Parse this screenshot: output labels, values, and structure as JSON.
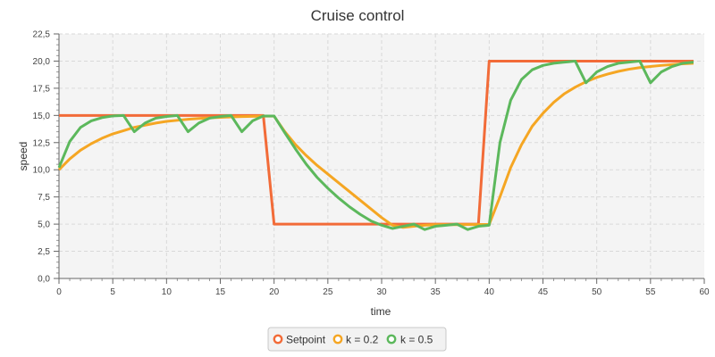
{
  "chart_data": {
    "type": "line",
    "title": "Cruise control",
    "xlabel": "time",
    "ylabel": "speed",
    "xlim": [
      0,
      60
    ],
    "ylim": [
      0,
      22.5
    ],
    "x_ticks": [
      "0",
      "5",
      "10",
      "15",
      "20",
      "25",
      "30",
      "35",
      "40",
      "45",
      "50",
      "55",
      "60"
    ],
    "y_ticks": [
      "0,0",
      "2,5",
      "5,0",
      "7,5",
      "10,0",
      "12,5",
      "15,0",
      "17,5",
      "20,0",
      "22,5"
    ],
    "grid": true,
    "legend_position": "bottom",
    "x": [
      0,
      1,
      2,
      3,
      4,
      5,
      6,
      7,
      8,
      9,
      10,
      11,
      12,
      13,
      14,
      15,
      16,
      17,
      18,
      19,
      20,
      21,
      22,
      23,
      24,
      25,
      26,
      27,
      28,
      29,
      30,
      31,
      32,
      33,
      34,
      35,
      36,
      37,
      38,
      39,
      40,
      41,
      42,
      43,
      44,
      45,
      46,
      47,
      48,
      49,
      50,
      51,
      52,
      53,
      54,
      55,
      56,
      57,
      58,
      59
    ],
    "series": [
      {
        "name": "Setpoint",
        "color": "#f26b38",
        "values": [
          15,
          15,
          15,
          15,
          15,
          15,
          15,
          15,
          15,
          15,
          15,
          15,
          15,
          15,
          15,
          15,
          15,
          15,
          15,
          15,
          5,
          5,
          5,
          5,
          5,
          5,
          5,
          5,
          5,
          5,
          5,
          5,
          5,
          5,
          5,
          5,
          5,
          5,
          5,
          5,
          20,
          20,
          20,
          20,
          20,
          20,
          20,
          20,
          20,
          20,
          20,
          20,
          20,
          20,
          20,
          20,
          20,
          20,
          20,
          20
        ]
      },
      {
        "name": "k = 0.2",
        "color": "#f5a623",
        "values": [
          10.0,
          11.0,
          11.8,
          12.4,
          12.9,
          13.3,
          13.6,
          13.9,
          14.1,
          14.3,
          14.45,
          14.55,
          14.65,
          14.72,
          14.78,
          14.82,
          14.86,
          14.89,
          14.91,
          14.93,
          14.93,
          13.5,
          12.3,
          11.3,
          10.4,
          9.6,
          8.8,
          8.0,
          7.2,
          6.4,
          5.6,
          4.9,
          4.7,
          4.8,
          4.9,
          4.95,
          4.95,
          4.95,
          4.96,
          4.97,
          4.97,
          7.5,
          10.2,
          12.3,
          14.0,
          15.2,
          16.2,
          17.0,
          17.6,
          18.1,
          18.5,
          18.8,
          19.05,
          19.25,
          19.4,
          19.5,
          19.6,
          19.68,
          19.75,
          19.8
        ]
      },
      {
        "name": "k = 0.5",
        "color": "#5cb85c",
        "values": [
          10.2,
          12.6,
          13.9,
          14.5,
          14.8,
          14.95,
          15.0,
          13.5,
          14.3,
          14.75,
          14.9,
          15.0,
          13.5,
          14.3,
          14.75,
          14.9,
          15.0,
          13.5,
          14.5,
          14.95,
          14.95,
          13.4,
          11.9,
          10.5,
          9.3,
          8.3,
          7.4,
          6.6,
          5.9,
          5.3,
          4.9,
          4.6,
          4.8,
          5.0,
          4.5,
          4.8,
          4.9,
          5.0,
          4.5,
          4.8,
          4.9,
          12.5,
          16.4,
          18.3,
          19.2,
          19.6,
          19.8,
          19.9,
          20.0,
          18.0,
          19.0,
          19.5,
          19.8,
          19.9,
          20.0,
          18.0,
          19.0,
          19.5,
          19.8,
          19.9
        ]
      }
    ]
  }
}
